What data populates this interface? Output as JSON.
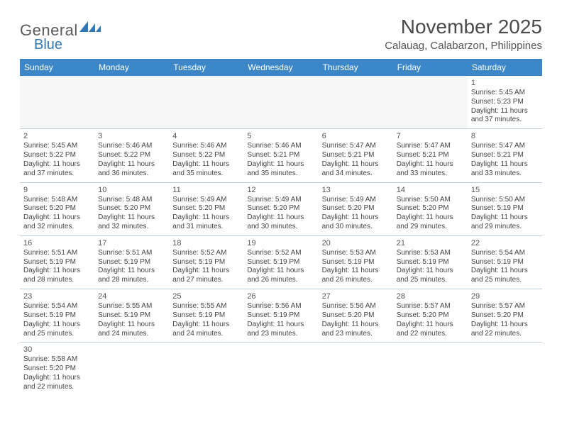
{
  "logo": {
    "general": "General",
    "blue": "Blue"
  },
  "title": "November 2025",
  "location": "Calauag, Calabarzon, Philippines",
  "header_bg": "#3b87c8",
  "weekdays": [
    "Sunday",
    "Monday",
    "Tuesday",
    "Wednesday",
    "Thursday",
    "Friday",
    "Saturday"
  ],
  "layout": {
    "leading_blanks": 6,
    "trailing_blanks": 6,
    "rows": 6,
    "cols": 7
  },
  "cell_style": {
    "border_color": "#c0cedd",
    "blank_bg": "#f7f7f7",
    "font_size": 10,
    "daynum_font_size": 11,
    "text_color": "#444444"
  },
  "days": [
    {
      "n": 1,
      "sunrise": "5:45 AM",
      "sunset": "5:23 PM",
      "daylight": "11 hours and 37 minutes."
    },
    {
      "n": 2,
      "sunrise": "5:45 AM",
      "sunset": "5:22 PM",
      "daylight": "11 hours and 37 minutes."
    },
    {
      "n": 3,
      "sunrise": "5:46 AM",
      "sunset": "5:22 PM",
      "daylight": "11 hours and 36 minutes."
    },
    {
      "n": 4,
      "sunrise": "5:46 AM",
      "sunset": "5:22 PM",
      "daylight": "11 hours and 35 minutes."
    },
    {
      "n": 5,
      "sunrise": "5:46 AM",
      "sunset": "5:21 PM",
      "daylight": "11 hours and 35 minutes."
    },
    {
      "n": 6,
      "sunrise": "5:47 AM",
      "sunset": "5:21 PM",
      "daylight": "11 hours and 34 minutes."
    },
    {
      "n": 7,
      "sunrise": "5:47 AM",
      "sunset": "5:21 PM",
      "daylight": "11 hours and 33 minutes."
    },
    {
      "n": 8,
      "sunrise": "5:47 AM",
      "sunset": "5:21 PM",
      "daylight": "11 hours and 33 minutes."
    },
    {
      "n": 9,
      "sunrise": "5:48 AM",
      "sunset": "5:20 PM",
      "daylight": "11 hours and 32 minutes."
    },
    {
      "n": 10,
      "sunrise": "5:48 AM",
      "sunset": "5:20 PM",
      "daylight": "11 hours and 32 minutes."
    },
    {
      "n": 11,
      "sunrise": "5:49 AM",
      "sunset": "5:20 PM",
      "daylight": "11 hours and 31 minutes."
    },
    {
      "n": 12,
      "sunrise": "5:49 AM",
      "sunset": "5:20 PM",
      "daylight": "11 hours and 30 minutes."
    },
    {
      "n": 13,
      "sunrise": "5:49 AM",
      "sunset": "5:20 PM",
      "daylight": "11 hours and 30 minutes."
    },
    {
      "n": 14,
      "sunrise": "5:50 AM",
      "sunset": "5:20 PM",
      "daylight": "11 hours and 29 minutes."
    },
    {
      "n": 15,
      "sunrise": "5:50 AM",
      "sunset": "5:19 PM",
      "daylight": "11 hours and 29 minutes."
    },
    {
      "n": 16,
      "sunrise": "5:51 AM",
      "sunset": "5:19 PM",
      "daylight": "11 hours and 28 minutes."
    },
    {
      "n": 17,
      "sunrise": "5:51 AM",
      "sunset": "5:19 PM",
      "daylight": "11 hours and 28 minutes."
    },
    {
      "n": 18,
      "sunrise": "5:52 AM",
      "sunset": "5:19 PM",
      "daylight": "11 hours and 27 minutes."
    },
    {
      "n": 19,
      "sunrise": "5:52 AM",
      "sunset": "5:19 PM",
      "daylight": "11 hours and 26 minutes."
    },
    {
      "n": 20,
      "sunrise": "5:53 AM",
      "sunset": "5:19 PM",
      "daylight": "11 hours and 26 minutes."
    },
    {
      "n": 21,
      "sunrise": "5:53 AM",
      "sunset": "5:19 PM",
      "daylight": "11 hours and 25 minutes."
    },
    {
      "n": 22,
      "sunrise": "5:54 AM",
      "sunset": "5:19 PM",
      "daylight": "11 hours and 25 minutes."
    },
    {
      "n": 23,
      "sunrise": "5:54 AM",
      "sunset": "5:19 PM",
      "daylight": "11 hours and 25 minutes."
    },
    {
      "n": 24,
      "sunrise": "5:55 AM",
      "sunset": "5:19 PM",
      "daylight": "11 hours and 24 minutes."
    },
    {
      "n": 25,
      "sunrise": "5:55 AM",
      "sunset": "5:19 PM",
      "daylight": "11 hours and 24 minutes."
    },
    {
      "n": 26,
      "sunrise": "5:56 AM",
      "sunset": "5:19 PM",
      "daylight": "11 hours and 23 minutes."
    },
    {
      "n": 27,
      "sunrise": "5:56 AM",
      "sunset": "5:20 PM",
      "daylight": "11 hours and 23 minutes."
    },
    {
      "n": 28,
      "sunrise": "5:57 AM",
      "sunset": "5:20 PM",
      "daylight": "11 hours and 22 minutes."
    },
    {
      "n": 29,
      "sunrise": "5:57 AM",
      "sunset": "5:20 PM",
      "daylight": "11 hours and 22 minutes."
    },
    {
      "n": 30,
      "sunrise": "5:58 AM",
      "sunset": "5:20 PM",
      "daylight": "11 hours and 22 minutes."
    }
  ],
  "labels": {
    "sunrise_prefix": "Sunrise: ",
    "sunset_prefix": "Sunset: ",
    "daylight_prefix": "Daylight: "
  }
}
